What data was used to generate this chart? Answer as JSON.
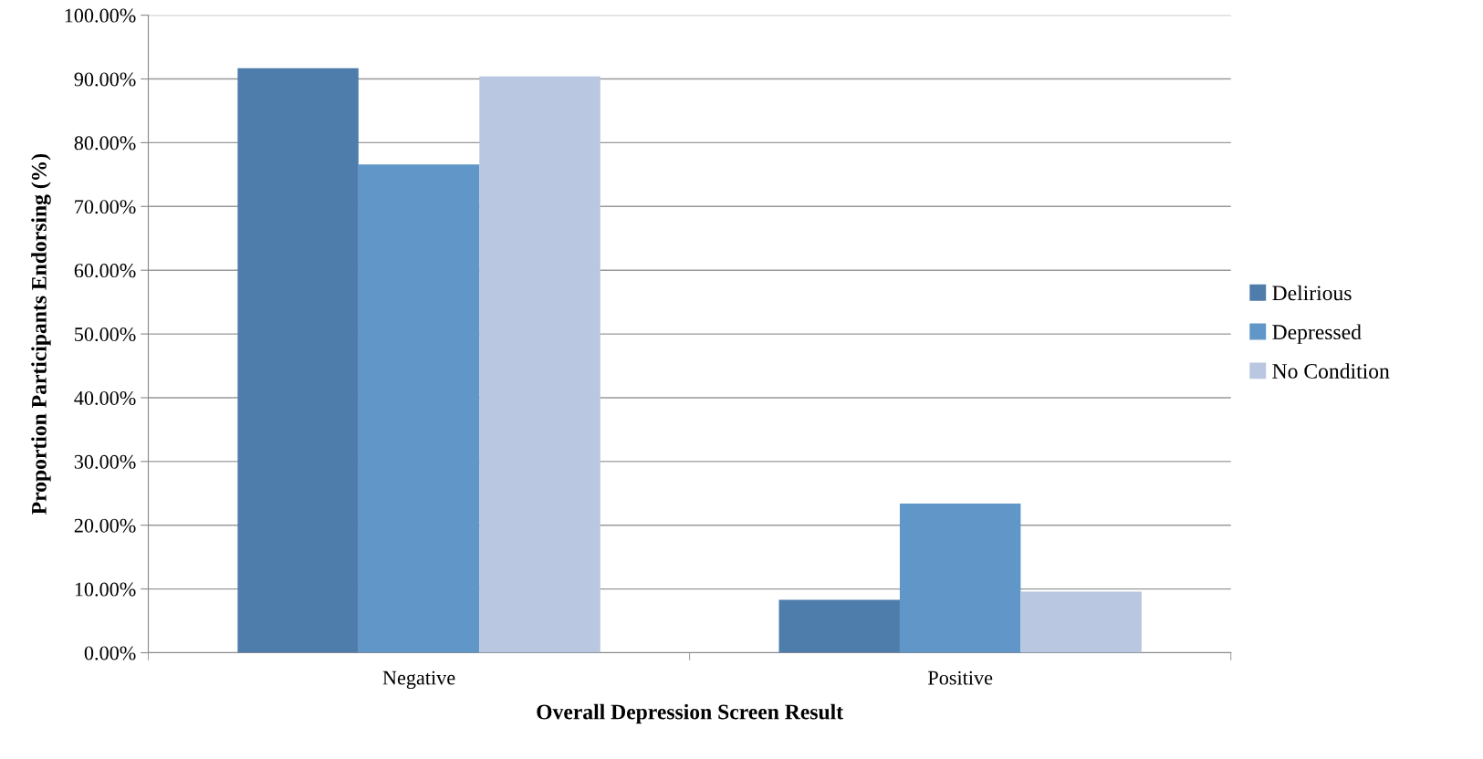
{
  "chart_data": {
    "type": "bar",
    "xlabel": "Overall Depression Screen Result",
    "ylabel": "Proportion Participants Endorsing (%)",
    "categories": [
      "Negative",
      "Positive"
    ],
    "series": [
      {
        "name": "Delirious",
        "color": "#4f7dab",
        "values": [
          91.7,
          8.3
        ]
      },
      {
        "name": "Depressed",
        "color": "#6096c8",
        "values": [
          76.6,
          23.4
        ]
      },
      {
        "name": "No Condition",
        "color": "#b9c7e0",
        "values": [
          90.4,
          9.6
        ]
      }
    ],
    "ylim": [
      0,
      100
    ],
    "yticks": [
      {
        "value": 0,
        "label": "0.00%"
      },
      {
        "value": 10,
        "label": "10.00%"
      },
      {
        "value": 20,
        "label": "20.00%"
      },
      {
        "value": 30,
        "label": "30.00%"
      },
      {
        "value": 40,
        "label": "40.00%"
      },
      {
        "value": 50,
        "label": "50.00%"
      },
      {
        "value": 60,
        "label": "60.00%"
      },
      {
        "value": 70,
        "label": "70.00%"
      },
      {
        "value": 80,
        "label": "80.00%"
      },
      {
        "value": 90,
        "label": "90.00%"
      },
      {
        "value": 100,
        "label": "100.00%"
      }
    ],
    "grid": "y",
    "legend": "right"
  }
}
